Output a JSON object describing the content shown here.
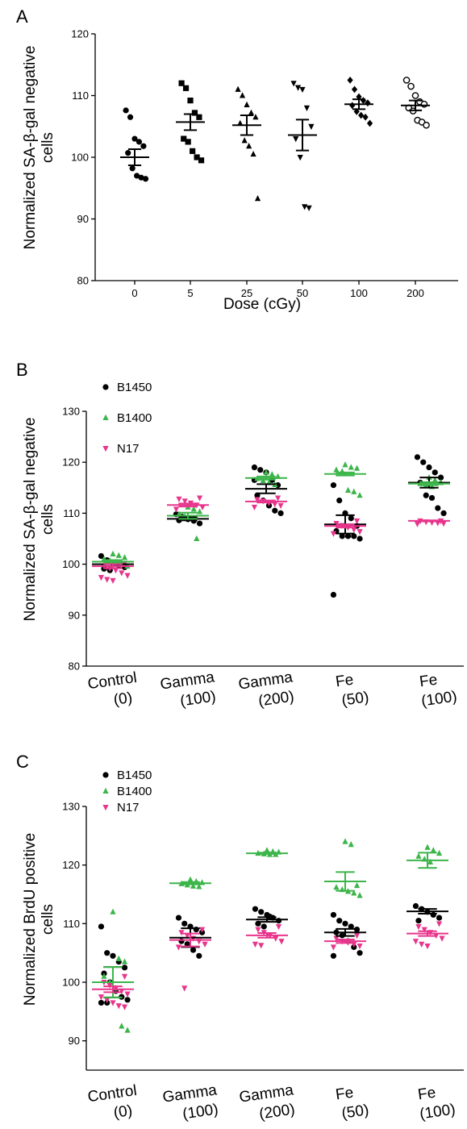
{
  "chart_data": [
    {
      "panel": "A",
      "type": "scatter",
      "title": "",
      "xlabel": "Dose (cGy)",
      "ylabel": "Normalized SA-β-gal negative cells",
      "ylim": [
        80,
        120
      ],
      "yticks": [
        80,
        90,
        100,
        110,
        120
      ],
      "categories": [
        "0",
        "5",
        "25",
        "50",
        "100",
        "200"
      ],
      "grid": false,
      "series": [
        {
          "color": "#000000",
          "groups": [
            {
              "marker": "circle",
              "points": [
                107.6,
                106.5,
                103.0,
                102.5,
                101.8,
                100.7,
                98.2,
                97.0,
                96.7,
                96.5
              ],
              "mean": 100.0,
              "sem": 1.3
            },
            {
              "marker": "square",
              "points": [
                112.0,
                111.2,
                109.2,
                107.2,
                106.5,
                103.0,
                102.5,
                101.0,
                100.0,
                99.5
              ],
              "mean": 105.7,
              "sem": 1.3
            },
            {
              "marker": "triangle-up",
              "points": [
                111.0,
                110.0,
                108.5,
                107.2,
                106.5,
                105.5,
                102.7,
                101.8,
                100.5,
                93.3
              ],
              "mean": 105.2,
              "sem": 1.6
            },
            {
              "marker": "triangle-down",
              "points": [
                112.0,
                111.3,
                111.0,
                108.0,
                105.0,
                103.0,
                100.0,
                92.0,
                91.8
              ],
              "mean": 103.6,
              "sem": 2.5
            },
            {
              "marker": "diamond",
              "points": [
                112.5,
                111.0,
                109.8,
                109.2,
                108.8,
                108.4,
                107.4,
                106.8,
                106.5,
                105.5
              ],
              "mean": 108.6,
              "sem": 0.8
            },
            {
              "marker": "open-circle",
              "points": [
                112.5,
                111.5,
                110.0,
                109.0,
                108.6,
                108.0,
                107.5,
                106.0,
                105.7,
                105.2
              ],
              "mean": 108.4,
              "sem": 0.8
            }
          ]
        }
      ]
    },
    {
      "panel": "B",
      "type": "scatter",
      "title": "",
      "xlabel": "",
      "ylabel": "Normalized SA-β-gal negative cells",
      "ylim": [
        80,
        130
      ],
      "yticks": [
        80,
        90,
        100,
        110,
        120,
        130
      ],
      "categories": [
        "Control (0)",
        "Gamma (100)",
        "Gamma (200)",
        "Fe (50)",
        "Fe (100)"
      ],
      "grid": false,
      "legend": "top-left",
      "series": [
        {
          "name": "B1450",
          "color": "#000000",
          "marker": "circle",
          "groups": [
            {
              "points": [
                101.6,
                100.8,
                100.2,
                99.8,
                99.4,
                99.1,
                98.8
              ],
              "mean": 100.0,
              "sem": 0.4
            },
            {
              "points": [
                109.8,
                109.3,
                108.8,
                108.5,
                108.0,
                108.6
              ],
              "mean": 108.9,
              "sem": 0.3
            },
            {
              "points": [
                119.0,
                118.5,
                118.0,
                116.5,
                115.5,
                113.5,
                112.5,
                111.5,
                110.5,
                110.0,
                116.5
              ],
              "mean": 114.8,
              "sem": 0.9
            },
            {
              "points": [
                115.5,
                112.5,
                110.0,
                109.0,
                107.5,
                106.5,
                105.5,
                105.5,
                105.5,
                105.0,
                94.0
              ],
              "mean": 107.8,
              "sem": 1.8
            },
            {
              "points": [
                121.0,
                120.0,
                119.0,
                118.0,
                117.0,
                116.0,
                113.5,
                113.0,
                111.0,
                110.0
              ],
              "mean": 116.0,
              "sem": 1.0
            }
          ]
        },
        {
          "name": "B1400",
          "color": "#3cb54a",
          "marker": "triangle-up",
          "groups": [
            {
              "points": [
                102.0,
                101.7,
                101.3,
                101.0,
                100.7,
                100.4,
                100.0,
                99.6
              ],
              "mean": 100.5,
              "sem": 0.3
            },
            {
              "points": [
                111.2,
                110.8,
                110.3,
                109.8,
                109.4,
                109.0,
                105.0
              ],
              "mean": 109.5,
              "sem": 0.6
            },
            {
              "points": [
                118.0,
                117.6,
                117.2,
                116.8,
                116.4,
                116.0,
                115.6
              ],
              "mean": 116.9,
              "sem": 0.3
            },
            {
              "points": [
                119.5,
                119.0,
                118.8,
                118.5,
                118.2,
                114.5,
                114.2,
                113.5
              ],
              "mean": 117.7,
              "sem": 0.3
            },
            {
              "points": [
                117.0,
                116.5,
                116.0,
                115.8,
                115.5,
                115.2
              ],
              "mean": 115.8,
              "sem": 0.3
            }
          ]
        },
        {
          "name": "N17",
          "color": "#e8358c",
          "marker": "triangle-down",
          "groups": [
            {
              "points": [
                100.2,
                99.6,
                99.2,
                98.8,
                98.3,
                97.8,
                97.4,
                97.0,
                96.8
              ],
              "mean": 99.6,
              "sem": 0.4
            },
            {
              "points": [
                113.0,
                112.8,
                112.4,
                112.0,
                111.6,
                111.2,
                110.8
              ],
              "mean": 111.6,
              "sem": 0.3
            },
            {
              "points": [
                113.0,
                112.7,
                112.4,
                112.0,
                111.8,
                111.5,
                111.2
              ],
              "mean": 112.3,
              "sem": 0.2
            },
            {
              "points": [
                108.5,
                108.0,
                107.6,
                107.2,
                106.8,
                106.4,
                106.0
              ],
              "mean": 107.5,
              "sem": 0.3
            },
            {
              "points": [
                108.5,
                108.5,
                108.3,
                108.2,
                108.1,
                108.0,
                107.9
              ],
              "mean": 108.5,
              "sem": 0.1
            }
          ]
        }
      ]
    },
    {
      "panel": "C",
      "type": "scatter",
      "title": "",
      "xlabel": "",
      "ylabel": "Normalized BrdU positive cells",
      "ylim": [
        85,
        130
      ],
      "yticks": [
        90,
        100,
        110,
        120,
        130
      ],
      "categories": [
        "Control (0)",
        "Gamma (100)",
        "Gamma (200)",
        "Fe (50)",
        "Fe (100)"
      ],
      "grid": false,
      "legend": "top-left",
      "series": [
        {
          "name": "B1450",
          "color": "#000000",
          "marker": "circle",
          "groups": [
            {
              "points": [
                109.5,
                105.0,
                104.5,
                103.5,
                102.5,
                101.5,
                100.0,
                98.5,
                97.5,
                97.0,
                96.5,
                96.5
              ],
              "mean": 100.0,
              "sem": 2.6
            },
            {
              "points": [
                111.0,
                110.0,
                109.5,
                109.0,
                108.5,
                107.0,
                106.5,
                105.5,
                104.5
              ],
              "mean": 107.6,
              "sem": 1.6
            },
            {
              "points": [
                112.5,
                112.0,
                111.5,
                111.0,
                110.5,
                110.0,
                109.5,
                111.2
              ],
              "mean": 110.7,
              "sem": 0.4
            },
            {
              "points": [
                111.5,
                110.5,
                110.0,
                109.5,
                109.0,
                108.5,
                108.0,
                107.0,
                106.0,
                105.0,
                104.5
              ],
              "mean": 108.5,
              "sem": 0.6
            },
            {
              "points": [
                113.0,
                112.5,
                112.0,
                111.5,
                111.0,
                110.5
              ],
              "mean": 112.1,
              "sem": 0.4
            }
          ]
        },
        {
          "name": "B1400",
          "color": "#3cb54a",
          "marker": "triangle-up",
          "groups": [
            {
              "points": [
                112.0,
                104.0,
                103.5,
                101.0,
                100.0,
                99.0,
                92.5,
                91.8
              ],
              "mean": 100.0,
              "sem": 2.6
            },
            {
              "points": [
                117.5,
                117.2,
                117.0,
                116.8,
                116.6,
                116.4,
                116.3
              ],
              "mean": 116.9,
              "sem": 0.2
            },
            {
              "points": [
                122.5,
                122.3,
                122.2,
                122.0,
                121.9,
                121.8,
                121.8
              ],
              "mean": 122.0,
              "sem": 0.1
            },
            {
              "points": [
                124.0,
                123.5,
                116.5,
                116.2,
                115.8,
                115.5,
                115.2,
                114.8
              ],
              "mean": 117.2,
              "sem": 1.6
            },
            {
              "points": [
                123.0,
                122.5,
                122.0,
                121.5,
                121.0,
                120.5
              ],
              "mean": 120.8,
              "sem": 1.3
            }
          ]
        },
        {
          "name": "N17",
          "color": "#e8358c",
          "marker": "triangle-down",
          "groups": [
            {
              "points": [
                101.0,
                100.0,
                99.5,
                99.0,
                98.5,
                98.0,
                97.5,
                97.0,
                96.5,
                96.0,
                95.8
              ],
              "mean": 98.8,
              "sem": 0.5
            },
            {
              "points": [
                109.0,
                108.5,
                108.0,
                107.5,
                107.0,
                106.5,
                106.0,
                99.0
              ],
              "mean": 107.2,
              "sem": 1.1
            },
            {
              "points": [
                109.5,
                109.0,
                108.5,
                108.0,
                107.5,
                107.0,
                106.5,
                106.3
              ],
              "mean": 108.0,
              "sem": 0.4
            },
            {
              "points": [
                108.0,
                107.5,
                107.0,
                106.8,
                106.5,
                106.2,
                106.0
              ],
              "mean": 107.0,
              "sem": 0.3
            },
            {
              "points": [
                110.0,
                109.5,
                109.0,
                108.5,
                108.0,
                107.5,
                107.0,
                106.5,
                106.2
              ],
              "mean": 108.3,
              "sem": 0.4
            }
          ]
        }
      ]
    }
  ]
}
